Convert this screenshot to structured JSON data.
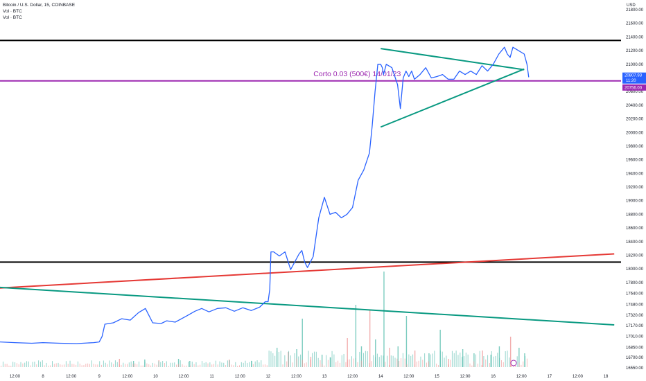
{
  "header": {
    "symbol_line": "Bitcoin / U.S. Dollar, 15, COINBASE",
    "vol_line_1": "Vol · BTC",
    "vol_line_2": "Vol · BTC"
  },
  "annotation": {
    "text": "Corto 0.03 (500€) 14/01/23",
    "color": "#9c27b0"
  },
  "colors": {
    "price": "#2962ff",
    "resistance": "#000000",
    "purple": "#9c27b0",
    "red_trend": "#e53935",
    "green_trend": "#089981",
    "vol_up": "#5bbfb0",
    "vol_down": "#ef9a9a",
    "price_tag": "#2962ff"
  },
  "price_tag": {
    "value": "20807.93",
    "countdown": "11:20"
  },
  "purple_tag": {
    "value": "20756.00"
  },
  "chart_data": {
    "type": "line",
    "title": "Bitcoin / U.S. Dollar, 15, COINBASE",
    "y_unit": "USD",
    "y_ticks": [
      16550,
      16700,
      16850,
      17010,
      17170,
      17320,
      17480,
      17640,
      17800,
      18000,
      18200,
      18400,
      18600,
      18800,
      19000,
      19200,
      19400,
      19600,
      19800,
      20000,
      20200,
      20400,
      20600,
      20800,
      21000,
      21200,
      21400,
      21600,
      21800
    ],
    "y_tick_labels": [
      "16550.00",
      "16700.00",
      "16850.00",
      "17010.00",
      "17170.00",
      "17320.00",
      "17480.00",
      "17640.00",
      "17800.00",
      "18000.00",
      "18200.00",
      "18400.00",
      "18600.00",
      "18800.00",
      "19000.00",
      "19200.00",
      "19400.00",
      "19600.00",
      "19800.00",
      "20000.00",
      "20200.00",
      "20400.00",
      "20600.00",
      "20800.00",
      "21000.00",
      "21200.00",
      "21400.00",
      "21600.00",
      "21800.00"
    ],
    "ylim": [
      16500,
      21950
    ],
    "x_tick_labels": [
      "12:00",
      "8",
      "12:00",
      "9",
      "12:00",
      "10",
      "12:00",
      "11",
      "12:00",
      "12",
      "12:00",
      "13",
      "12:00",
      "14",
      "12:00",
      "15",
      "12:00",
      "16",
      "12:00",
      "17",
      "12:00",
      "18"
    ],
    "x_tick_days": [
      7.5,
      8,
      8.5,
      9,
      9.5,
      10,
      10.5,
      11,
      11.5,
      12,
      12.5,
      13,
      13.5,
      14,
      14.5,
      15,
      15.5,
      16,
      16.5,
      17,
      17.5,
      18
    ],
    "xlim": [
      7.22,
      18.15
    ],
    "series": [
      {
        "x": [
          7.22,
          7.5,
          7.8,
          8.0,
          8.3,
          8.6,
          8.9,
          9.0,
          9.05,
          9.1,
          9.25,
          9.4,
          9.55,
          9.7,
          9.82,
          9.95,
          10.1,
          10.2,
          10.35,
          10.55,
          10.7,
          10.82,
          10.95,
          11.1,
          11.25,
          11.4,
          11.55,
          11.7,
          11.85,
          11.95,
          12.0,
          12.03,
          12.05,
          12.1,
          12.2,
          12.3,
          12.4,
          12.55,
          12.6,
          12.65,
          12.7,
          12.8,
          12.9,
          13.0,
          13.1,
          13.2,
          13.3,
          13.4,
          13.5,
          13.6,
          13.7,
          13.8,
          13.85,
          13.9,
          13.95,
          14.0,
          14.03,
          14.05,
          14.1,
          14.2,
          14.3,
          14.35,
          14.4,
          14.45,
          14.5,
          14.55,
          14.6,
          14.7,
          14.8,
          14.9,
          15.0,
          15.1,
          15.2,
          15.3,
          15.4,
          15.5,
          15.6,
          15.7,
          15.8,
          15.9,
          16.0,
          16.1,
          16.2,
          16.25,
          16.3,
          16.35,
          16.45,
          16.55,
          16.6,
          16.63
        ],
        "y": [
          16930,
          16920,
          16910,
          16920,
          16910,
          16905,
          16920,
          16930,
          17010,
          17190,
          17210,
          17270,
          17250,
          17360,
          17420,
          17210,
          17200,
          17240,
          17220,
          17310,
          17380,
          17420,
          17370,
          17420,
          17430,
          17380,
          17430,
          17390,
          17440,
          17520,
          17520,
          17700,
          18250,
          18250,
          18190,
          18250,
          17990,
          18220,
          18270,
          18100,
          18020,
          18180,
          18750,
          19050,
          18800,
          18830,
          18750,
          18800,
          18900,
          19300,
          19450,
          19700,
          20100,
          20600,
          21000,
          21000,
          20950,
          20850,
          21000,
          20950,
          20700,
          20350,
          20800,
          20900,
          20820,
          20900,
          20780,
          20850,
          20950,
          20800,
          20820,
          20850,
          20780,
          20780,
          20900,
          20850,
          20900,
          20850,
          20980,
          20900,
          21000,
          21150,
          21250,
          21150,
          21100,
          21250,
          21200,
          21150,
          21000,
          20810
        ],
        "name": ""
      }
    ],
    "lines": {
      "resistance_upper": 21350,
      "resistance_lower": 18100,
      "purple_level": 20756,
      "red_trend": [
        [
          7.22,
          17720
        ],
        [
          18.15,
          18220
        ]
      ],
      "green_trend_low": [
        [
          7.22,
          17730
        ],
        [
          18.15,
          17180
        ]
      ],
      "triangle_upper": [
        [
          14.0,
          21230
        ],
        [
          16.55,
          20920
        ]
      ],
      "triangle_lower": [
        [
          14.0,
          20080
        ],
        [
          16.55,
          20930
        ]
      ]
    },
    "volume": [
      [
        9.35,
        12
      ],
      [
        9.6,
        9
      ],
      [
        9.8,
        11
      ],
      [
        10.05,
        10
      ],
      [
        10.4,
        12
      ],
      [
        10.6,
        9
      ],
      [
        11.3,
        11
      ],
      [
        11.7,
        9
      ],
      [
        12.15,
        28
      ],
      [
        12.35,
        22
      ],
      [
        12.5,
        26
      ],
      [
        12.6,
        70
      ],
      [
        12.75,
        15
      ],
      [
        12.95,
        18
      ],
      [
        13.1,
        14
      ],
      [
        13.4,
        42
      ],
      [
        13.55,
        90
      ],
      [
        13.65,
        30
      ],
      [
        13.8,
        82
      ],
      [
        13.9,
        40
      ],
      [
        14.05,
        138
      ],
      [
        14.15,
        28
      ],
      [
        14.3,
        30
      ],
      [
        14.45,
        74
      ],
      [
        14.6,
        24
      ],
      [
        14.85,
        20
      ],
      [
        15.05,
        54
      ],
      [
        15.2,
        12
      ],
      [
        15.45,
        26
      ],
      [
        15.65,
        20
      ],
      [
        15.8,
        24
      ],
      [
        15.95,
        18
      ],
      [
        16.1,
        30
      ],
      [
        16.3,
        44
      ],
      [
        16.45,
        28
      ],
      [
        16.55,
        20
      ]
    ],
    "grid": false,
    "legend": "top-left"
  }
}
